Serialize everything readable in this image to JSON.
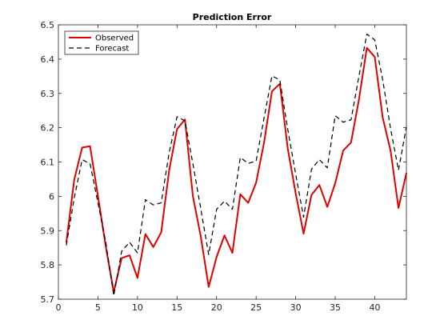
{
  "chart_data": {
    "type": "line",
    "title": "Prediction Error",
    "xlabel": "",
    "ylabel": "",
    "xlim": [
      0,
      44
    ],
    "ylim": [
      5.7,
      6.5
    ],
    "xticks": [
      0,
      5,
      10,
      15,
      20,
      25,
      30,
      35,
      40
    ],
    "yticks": [
      5.7,
      5.8,
      5.9,
      6.0,
      6.1,
      6.2,
      6.3,
      6.4,
      6.5
    ],
    "xtick_labels": [
      "0",
      "5",
      "10",
      "15",
      "20",
      "25",
      "30",
      "35",
      "40"
    ],
    "ytick_labels": [
      "5.7",
      "5.8",
      "5.9",
      "6",
      "6.1",
      "6.2",
      "6.3",
      "6.4",
      "6.5"
    ],
    "grid": false,
    "legend_position": "top-left",
    "x": [
      1,
      2,
      3,
      4,
      5,
      6,
      7,
      8,
      9,
      10,
      11,
      12,
      13,
      14,
      15,
      16,
      17,
      18,
      19,
      20,
      21,
      22,
      23,
      24,
      25,
      26,
      27,
      28,
      29,
      30,
      31,
      32,
      33,
      34,
      35,
      36,
      37,
      38,
      39,
      40,
      41,
      42,
      43,
      44
    ],
    "series": [
      {
        "name": "Observed",
        "color": "#e00000",
        "style": "solid",
        "values": [
          5.865,
          6.048,
          6.142,
          6.146,
          6.001,
          5.852,
          5.721,
          5.82,
          5.828,
          5.762,
          5.89,
          5.852,
          5.895,
          6.075,
          6.196,
          6.224,
          6.001,
          5.883,
          5.736,
          5.823,
          5.886,
          5.835,
          6.006,
          5.981,
          6.04,
          6.156,
          6.306,
          6.328,
          6.139,
          6.009,
          5.891,
          6.004,
          6.033,
          5.969,
          6.038,
          6.133,
          6.157,
          6.282,
          6.433,
          6.406,
          6.23,
          6.133,
          5.966,
          6.068
        ]
      },
      {
        "name": "Forecast",
        "color": "#000000",
        "style": "dashed",
        "values": [
          5.857,
          5.995,
          6.107,
          6.095,
          5.981,
          5.865,
          5.71,
          5.84,
          5.866,
          5.835,
          5.99,
          5.975,
          5.981,
          6.127,
          6.232,
          6.22,
          6.095,
          5.964,
          5.83,
          5.962,
          5.986,
          5.962,
          6.113,
          6.096,
          6.103,
          6.228,
          6.351,
          6.339,
          6.195,
          6.065,
          5.939,
          6.079,
          6.107,
          6.083,
          6.235,
          6.216,
          6.223,
          6.35,
          6.473,
          6.456,
          6.34,
          6.197,
          6.076,
          6.203
        ]
      }
    ]
  }
}
